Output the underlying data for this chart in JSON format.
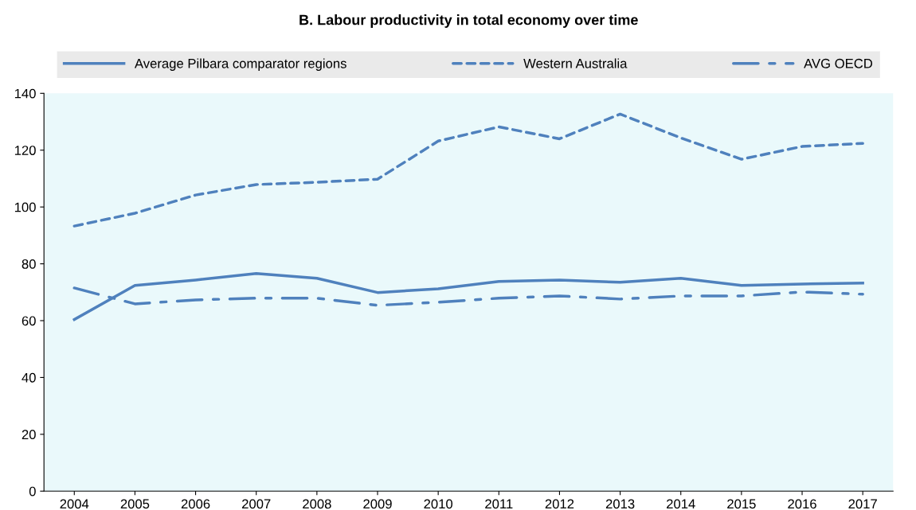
{
  "chart_data": {
    "type": "line",
    "title": "B. Labour productivity in total economy over time",
    "categories": [
      "2004",
      "2005",
      "2006",
      "2007",
      "2008",
      "2009",
      "2010",
      "2011",
      "2012",
      "2013",
      "2014",
      "2015",
      "2016",
      "2017"
    ],
    "series": [
      {
        "name": "Average Pilbara comparator regions",
        "color": "#4f81bd",
        "line_style": "solid",
        "values": [
          60.4,
          72.4,
          74.3,
          76.6,
          74.9,
          69.9,
          71.2,
          73.8,
          74.3,
          73.5,
          74.9,
          72.4,
          72.9,
          73.2
        ]
      },
      {
        "name": "Western Australia",
        "color": "#4f81bd",
        "line_style": "dashed",
        "values": [
          93.3,
          97.8,
          104.2,
          107.9,
          108.7,
          109.8,
          123.2,
          128.2,
          124.0,
          132.7,
          124.3,
          116.8,
          121.3,
          122.4
        ]
      },
      {
        "name": "AVG OECD",
        "color": "#4f81bd",
        "line_style": "dashdot",
        "values": [
          71.5,
          65.9,
          67.3,
          67.9,
          67.9,
          65.4,
          66.5,
          67.9,
          68.7,
          67.6,
          68.7,
          68.7,
          70.1,
          69.3
        ]
      }
    ],
    "ylim": [
      0,
      140
    ],
    "yticks": [
      0,
      20,
      40,
      60,
      80,
      100,
      120,
      140
    ],
    "grid": false,
    "legend": "top",
    "marker": "none"
  }
}
